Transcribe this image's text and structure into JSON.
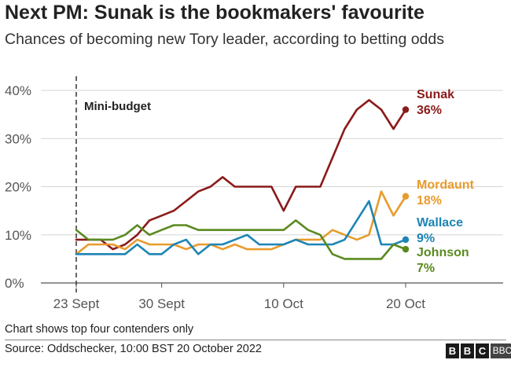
{
  "title": "Next PM: Sunak is the bookmakers' favourite",
  "subtitle": "Chances of becoming new Tory leader, according to betting odds",
  "note": "Chart shows top four contenders only",
  "source": "Source: Oddschecker, 10:00 BST 20 October 2022",
  "logo": [
    "B",
    "B",
    "C",
    "BBC"
  ],
  "chart_data": {
    "type": "line",
    "x_ticks": [
      {
        "label": "23 Sept",
        "index": 0
      },
      {
        "label": "30 Sept",
        "index": 7
      },
      {
        "label": "10 Oct",
        "index": 17
      },
      {
        "label": "20 Oct",
        "index": 27
      }
    ],
    "y_ticks": [
      "0%",
      "10%",
      "20%",
      "30%",
      "40%"
    ],
    "ylim": [
      0,
      40
    ],
    "grid": true,
    "annotation": {
      "label": "Mini-budget",
      "index": 0
    },
    "series": [
      {
        "name": "Sunak",
        "value_label": "36%",
        "color": "#8b1a1a",
        "values": [
          9,
          9,
          9,
          7,
          8,
          10,
          13,
          14,
          15,
          17,
          19,
          20,
          22,
          20,
          20,
          20,
          20,
          15,
          20,
          20,
          20,
          26,
          32,
          36,
          38,
          36,
          32,
          36
        ]
      },
      {
        "name": "Mordaunt",
        "value_label": "18%",
        "color": "#e89b2c",
        "values": [
          6,
          8,
          8,
          8,
          7,
          9,
          8,
          8,
          8,
          7,
          8,
          8,
          7,
          8,
          7,
          7,
          7,
          8,
          9,
          9,
          9,
          11,
          10,
          9,
          10,
          19,
          14,
          18
        ]
      },
      {
        "name": "Wallace",
        "value_label": "9%",
        "color": "#1d85b5",
        "values": [
          6,
          6,
          6,
          6,
          6,
          8,
          6,
          6,
          8,
          9,
          6,
          8,
          8,
          9,
          10,
          8,
          8,
          8,
          9,
          8,
          8,
          8,
          9,
          13,
          17,
          8,
          8,
          9
        ]
      },
      {
        "name": "Johnson",
        "value_label": "7%",
        "color": "#5a8a1f",
        "values": [
          11,
          9,
          9,
          9,
          10,
          12,
          10,
          11,
          12,
          12,
          11,
          11,
          11,
          11,
          11,
          11,
          11,
          11,
          13,
          11,
          10,
          6,
          5,
          5,
          5,
          5,
          8,
          7
        ]
      }
    ]
  }
}
